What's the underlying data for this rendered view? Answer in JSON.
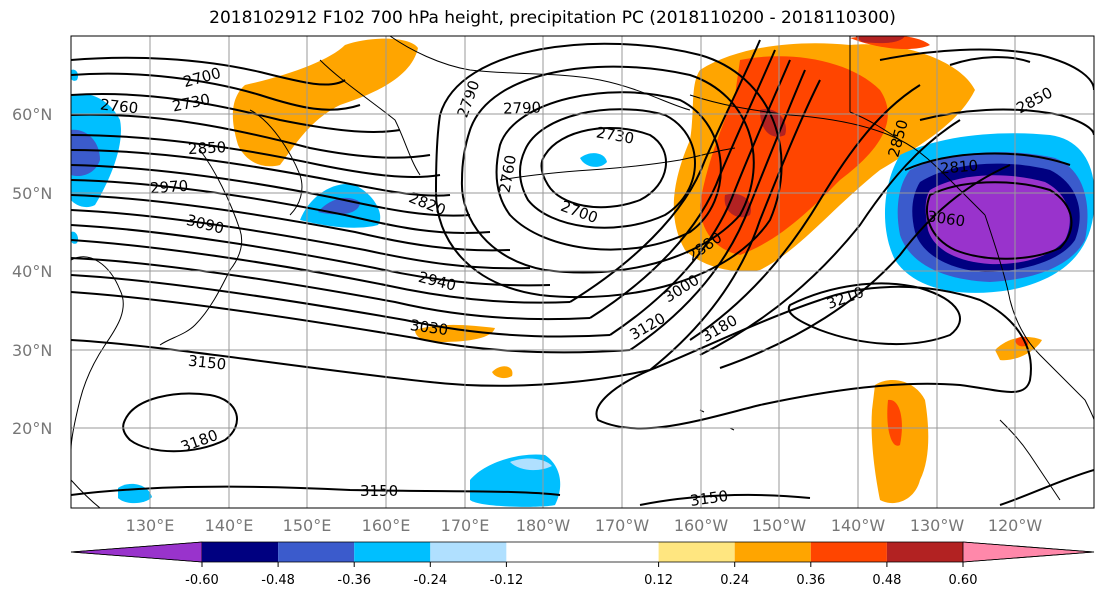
{
  "title": "2018102912 F102 700 hPa height, precipitation PC (2018110200 - 2018110300)",
  "lat_labels": [
    "60°N",
    "50°N",
    "40°N",
    "30°N",
    "20°N"
  ],
  "lon_labels": [
    "130°E",
    "140°E",
    "150°E",
    "160°E",
    "170°E",
    "180°W",
    "170°W",
    "160°W",
    "150°W",
    "140°W",
    "130°W",
    "120°W"
  ],
  "contour_labels": [
    "2700",
    "2730",
    "2760",
    "2850",
    "2970",
    "3090",
    "2790",
    "2790",
    "2730",
    "2760",
    "2700",
    "2820",
    "2940",
    "3030",
    "3150",
    "3180",
    "3150",
    "3150",
    "3120",
    "3000",
    "2880",
    "3180",
    "3210",
    "2850",
    "2850",
    "2810",
    "3060"
  ],
  "colorbar": {
    "colors": [
      "#9933cc",
      "#000080",
      "#3b5bcc",
      "#00bfff",
      "#b0e0ff",
      "#ffffff",
      "#ffffff",
      "#ffe680",
      "#ffa500",
      "#ff4500",
      "#b22222",
      "#ff88aa"
    ],
    "ticks": [
      "-0.60",
      "-0.48",
      "-0.36",
      "-0.24",
      "-0.12",
      "0.12",
      "0.24",
      "0.36",
      "0.48",
      "0.60"
    ]
  }
}
